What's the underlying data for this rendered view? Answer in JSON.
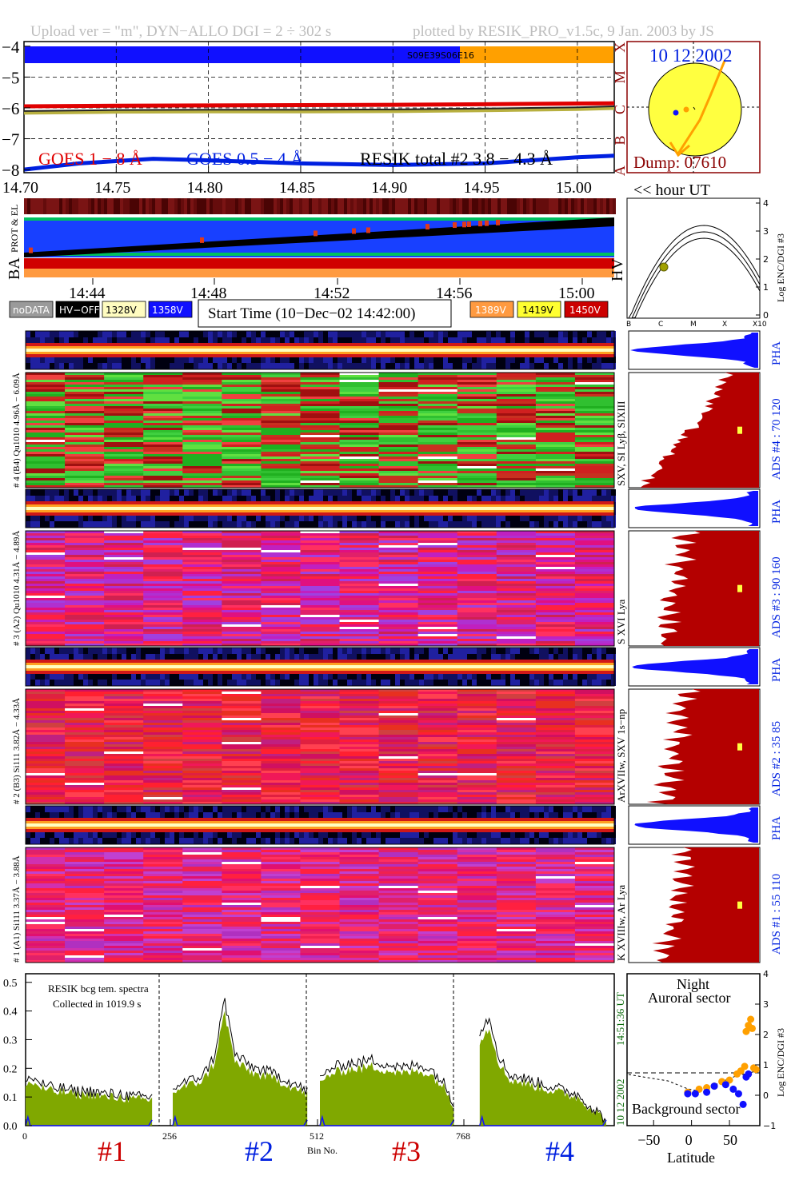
{
  "header": {
    "left": "Upload ver = \"m\", DYN−ALLO DGI =   2 ÷ 302 s",
    "right": "plotted by RESIK_PRO_v1.5c, 9 Jan. 2003 by JS"
  },
  "goes_panel": {
    "yticks": [
      "−4",
      "−5",
      "−6",
      "−7",
      "−8"
    ],
    "xticks": [
      "14.70",
      "14.75",
      "14.80",
      "14.85",
      "14.90",
      "14.95",
      "15.00"
    ],
    "hour_label": "<< hour UT",
    "class_letters": [
      "X",
      "M",
      "C",
      "B",
      "A"
    ],
    "legend": [
      {
        "text": "GOES 1 − 8 Å",
        "color": "#e00000"
      },
      {
        "text": "GOES 0.5 − 4 Å",
        "color": "#0020e0"
      },
      {
        "text": "RESIK total #2  3.8 − 4.3 Å",
        "color": "#000000"
      }
    ],
    "bar_label": "S09E39S06E16"
  },
  "sun_panel": {
    "date": "10 12 2002",
    "dump": "Dump: 07610"
  },
  "status_panel": {
    "left_labels": [
      "PROT & EL",
      "BA"
    ],
    "time_ticks": [
      "14:44",
      "14:48",
      "14:52",
      "14:56",
      "15:00"
    ],
    "legend_left": [
      {
        "text": "noDATA",
        "bg": "#9a9a9a",
        "fg": "#ffffff"
      },
      {
        "text": "HV−OFF",
        "bg": "#000000",
        "fg": "#ffffff"
      },
      {
        "text": "1328V",
        "bg": "#fffcc0",
        "fg": "#000000"
      },
      {
        "text": "1358V",
        "bg": "#1010ff",
        "fg": "#ffffff"
      }
    ],
    "start_time": "Start Time (10−Dec−02 14:42:00)",
    "legend_right": [
      {
        "text": "1389V",
        "bg": "#ff9a40",
        "fg": "#ffffff"
      },
      {
        "text": "1419V",
        "bg": "#ffff30",
        "fg": "#000000"
      },
      {
        "text": "1450V",
        "bg": "#cc0000",
        "fg": "#ffffff"
      }
    ]
  },
  "hv_panel": {
    "label": "HV",
    "xticks": [
      "B",
      "C",
      "M",
      "X",
      "X10"
    ],
    "yticks": [
      "0",
      "1",
      "2",
      "3",
      "4"
    ],
    "ylabel": "Log ENC/DGI #3"
  },
  "channels": [
    {
      "pha_label": "# 4 (B4) Qu1010 4.96Å − 6.09Å",
      "line_label": "SXV, SI Lyβ, SIXIII",
      "ads_label": "ADS #4 :   70  120",
      "pha_tag": "PHA",
      "palette": "green"
    },
    {
      "pha_label": "# 3 (A2) Qu1010  4.31Å − 4.89Å",
      "line_label": "S XVI Lya",
      "ads_label": "ADS #3 :   90  160",
      "pha_tag": "PHA",
      "palette": "magenta"
    },
    {
      "pha_label": "# 2 (B3) Si111  3.82Å − 4.33Å",
      "line_label": "ArXVIIw, SXV 1s−np",
      "ads_label": "ADS #2 :   35  85",
      "pha_tag": "PHA",
      "palette": "red"
    },
    {
      "pha_label": "# 1 (A1) Si111  3.37Å − 3.88Å",
      "line_label": "K XVIIIw, Ar Lya",
      "ads_label": "ADS #1 :   55  110",
      "pha_tag": "PHA",
      "palette": "magenta2"
    }
  ],
  "spectrum_panel": {
    "note_line1": "RESIK bcg tem. spectra",
    "note_line2": "Collected in  1019.9 s",
    "yticks": [
      "0.0",
      "0.1",
      "0.2",
      "0.3",
      "0.4",
      "0.5"
    ],
    "xticks": [
      "0",
      "256",
      "512",
      "768"
    ],
    "xlabel": "Bin No.",
    "right_date": "10 12 2002",
    "right_time": "14:51:36 UT",
    "channel_tags": [
      {
        "text": "#1",
        "color": "#cc0000"
      },
      {
        "text": "#2",
        "color": "#0020e0"
      },
      {
        "text": "#3",
        "color": "#cc0000"
      },
      {
        "text": "#4",
        "color": "#0020e0"
      }
    ]
  },
  "latitude_panel": {
    "title1": "Night",
    "title2": "Auroral sector",
    "bottom_label": "Background sector",
    "xlabel": "Latitude",
    "xticks": [
      "−50",
      "0",
      "50"
    ],
    "yticks": [
      "−1",
      "0",
      "1",
      "2",
      "3",
      "4"
    ],
    "ylabel": "Log ENC/DGI #3"
  },
  "colors": {
    "goes_long": "#e00000",
    "goes_short": "#0020e0",
    "sun_fill": "#ffff40",
    "sun_border": "#8b0000",
    "hist_fill": "#b40000",
    "pha_fill": "#1010ff",
    "spectrum_fill": "#80a800",
    "orange": "#ffa000"
  },
  "chart_data": [
    {
      "type": "line",
      "title": "",
      "xlabel": "<< hour UT",
      "ylabel": "",
      "xlim": [
        14.7,
        15.02
      ],
      "ylim": [
        -8.1,
        -3.85
      ],
      "series": [
        {
          "name": "GOES 1 − 8 Å",
          "x": [
            14.7,
            14.75,
            14.8,
            14.85,
            14.9,
            14.95,
            15.0,
            15.02
          ],
          "y": [
            -5.95,
            -5.93,
            -5.92,
            -5.91,
            -5.9,
            -5.88,
            -5.86,
            -5.85
          ]
        },
        {
          "name": "GOES 0.5 − 4 Å",
          "x": [
            14.7,
            14.73,
            14.77,
            14.8,
            14.85,
            14.9,
            14.95,
            15.0,
            15.02
          ],
          "y": [
            -8.0,
            -7.8,
            -7.65,
            -7.7,
            -7.8,
            -7.85,
            -7.8,
            -7.6,
            -7.55
          ]
        },
        {
          "name": "RESIK total #2  3.8 − 4.3 Å",
          "x": [
            14.7,
            14.75,
            14.8,
            14.85,
            14.9,
            14.95,
            15.0,
            15.02
          ],
          "y": [
            -6.1,
            -6.07,
            -6.06,
            -6.06,
            -6.05,
            -6.02,
            -5.98,
            -5.95
          ]
        }
      ]
    },
    {
      "type": "bar",
      "title": "",
      "xlabel": "Bin No.",
      "ylabel": "",
      "xlim": [
        0,
        1024
      ],
      "ylim": [
        0,
        0.53
      ],
      "segments": [
        {
          "channel": "#1",
          "bins": [
            0,
            220
          ],
          "values": [
            0.17,
            0.16,
            0.14,
            0.13,
            0.13,
            0.12,
            0.12,
            0.12,
            0.11,
            0.11,
            0.11,
            0.1,
            0.1,
            0.1
          ]
        },
        {
          "channel": "#2",
          "bins": [
            256,
            490
          ],
          "values": [
            0.13,
            0.15,
            0.16,
            0.18,
            0.24,
            0.44,
            0.25,
            0.22,
            0.2,
            0.19,
            0.18,
            0.16,
            0.14,
            0.12
          ]
        },
        {
          "channel": "#3",
          "bins": [
            512,
            745
          ],
          "values": [
            0.16,
            0.2,
            0.21,
            0.22,
            0.22,
            0.23,
            0.22,
            0.21,
            0.2,
            0.21,
            0.21,
            0.19,
            0.15,
            0.08
          ]
        },
        {
          "channel": "#4",
          "bins": [
            790,
            1010
          ],
          "values": [
            0.33,
            0.38,
            0.24,
            0.18,
            0.17,
            0.16,
            0.15,
            0.14,
            0.13,
            0.12,
            0.11,
            0.08,
            0.05,
            0.02
          ]
        }
      ]
    },
    {
      "type": "scatter",
      "title": "",
      "xlabel": "Latitude",
      "ylabel": "Log ENC/DGI #3",
      "xlim": [
        -85,
        90
      ],
      "ylim": [
        -1,
        4
      ],
      "series": [
        {
          "color": "#ffa000",
          "x": [
            -5,
            10,
            20,
            30,
            40,
            50,
            60,
            65,
            70,
            72,
            75,
            78,
            80,
            82,
            85
          ],
          "y": [
            0.1,
            0.2,
            0.25,
            0.3,
            0.45,
            0.5,
            0.7,
            0.8,
            0.95,
            2.1,
            2.3,
            2.5,
            2.2,
            0.9,
            0.85
          ]
        },
        {
          "color": "#1010ff",
          "x": [
            -5,
            5,
            20,
            30,
            45,
            55,
            62,
            68,
            72,
            75
          ],
          "y": [
            0.05,
            0.05,
            0.1,
            0.3,
            0.35,
            0.2,
            0.05,
            -0.3,
            0.6,
            0.7
          ]
        }
      ]
    }
  ]
}
